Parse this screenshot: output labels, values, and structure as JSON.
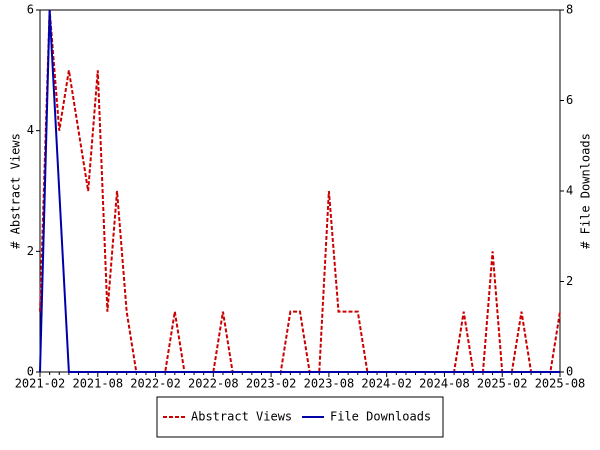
{
  "chart_data": {
    "type": "line",
    "x": [
      "2021-02",
      null,
      null,
      null,
      null,
      null,
      "2021-08",
      null,
      null,
      null,
      null,
      null,
      "2022-02",
      null,
      null,
      null,
      null,
      null,
      "2022-08",
      null,
      null,
      null,
      null,
      null,
      "2023-02",
      null,
      null,
      null,
      null,
      null,
      "2023-08",
      null,
      null,
      null,
      null,
      null,
      "2024-02",
      null,
      null,
      null,
      null,
      null,
      "2024-08",
      null,
      null,
      null,
      null,
      null,
      "2025-02",
      null,
      null,
      null,
      null,
      null,
      "2025-08"
    ],
    "y_label": "# Abstract Views",
    "y2_label": "# File Downloads",
    "ylim": [
      0,
      6
    ],
    "yticks": [
      0,
      2,
      4,
      6
    ],
    "y2lim": [
      0,
      8
    ],
    "y2ticks": [
      0,
      2,
      4,
      6,
      8
    ],
    "series": [
      {
        "name": "Abstract Views",
        "color": "#cc0000",
        "dashed": true,
        "values": [
          1,
          6,
          4,
          5,
          4,
          3,
          5,
          1,
          3,
          1,
          0,
          0,
          0,
          0,
          1,
          0,
          0,
          0,
          0,
          1,
          0,
          0,
          0,
          0,
          0,
          0,
          1,
          1,
          0,
          0,
          3,
          1,
          1,
          1,
          0,
          0,
          0,
          0,
          0,
          0,
          0,
          0,
          0,
          0,
          1,
          0,
          0,
          2,
          0,
          0,
          1,
          0,
          0,
          0,
          1
        ]
      },
      {
        "name": "File Downloads",
        "color": "#0000aa",
        "axis": "y2",
        "dashed": false,
        "values": [
          0,
          8,
          4,
          0,
          0,
          0,
          0,
          0,
          0,
          0,
          0,
          0,
          0,
          0,
          0,
          0,
          0,
          0,
          0,
          0,
          0,
          0,
          0,
          0,
          0,
          0,
          0,
          0,
          0,
          0,
          0,
          0,
          0,
          0,
          0,
          0,
          0,
          0,
          0,
          0,
          0,
          0,
          0,
          0,
          0,
          0,
          0,
          0,
          0,
          0,
          0,
          0,
          0,
          0,
          0
        ]
      }
    ],
    "legend": "bottom"
  }
}
